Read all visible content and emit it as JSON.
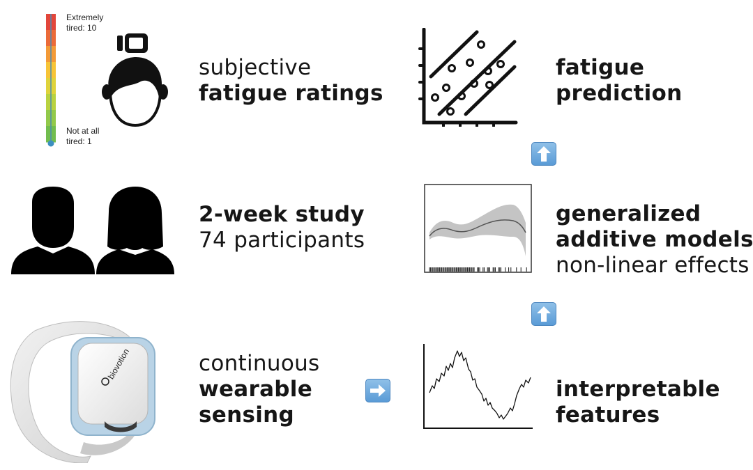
{
  "rating_scale": {
    "top_label_line1": "Extremely",
    "top_label_line2": "tired: 10",
    "bottom_label_line1": "Not at all",
    "bottom_label_line2": "tired: 1",
    "colors": [
      "#e2463b",
      "#eb6b39",
      "#f39a37",
      "#f7c437",
      "#dfd33b",
      "#b9d240",
      "#92c94a",
      "#72bd4e"
    ]
  },
  "rows": {
    "ratings": {
      "line1": "subjective",
      "line2": "fatigue ratings"
    },
    "study": {
      "line1": "2-week study",
      "line2": "74 participants"
    },
    "sensing": {
      "line1": "continuous",
      "line2": "wearable",
      "line3": "sensing"
    },
    "prediction": {
      "line1": "fatigue",
      "line2": "prediction"
    },
    "gam": {
      "line1": "generalized",
      "line2": "additive models",
      "line3": "non-linear effects"
    },
    "features": {
      "line1": "interpretable",
      "line2": "features"
    }
  },
  "device": {
    "brand": "biovotion"
  },
  "icons": [
    "battery-icon",
    "head-icon",
    "people-icon",
    "wearable-device-image",
    "scatter-plot-icon",
    "gam-plot-icon",
    "time-series-icon",
    "arrow-up-icon",
    "arrow-right-icon"
  ]
}
